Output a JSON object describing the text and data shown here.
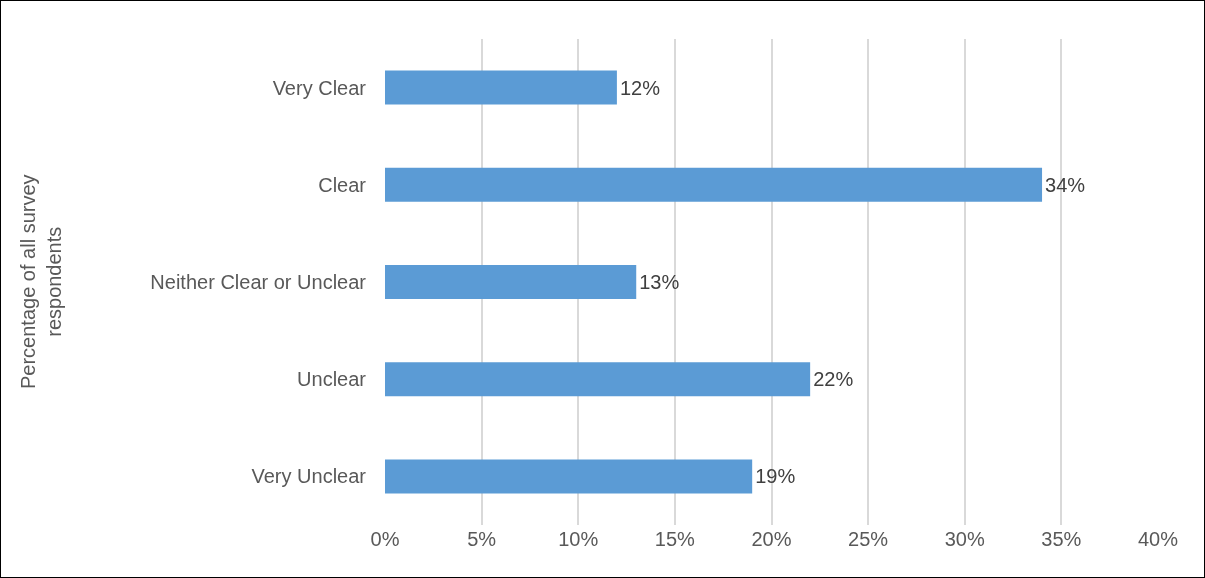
{
  "chart_data": {
    "type": "bar",
    "orientation": "horizontal",
    "ylabel": "Percentage of all survey respondents",
    "categories": [
      "Very Clear",
      "Clear",
      "Neither Clear or Unclear",
      "Unclear",
      "Very Unclear"
    ],
    "values": [
      12,
      34,
      13,
      22,
      19
    ],
    "color": "#5b9bd5",
    "value_labels": [
      "12%",
      "34%",
      "13%",
      "22%",
      "19%"
    ],
    "xlim": [
      0,
      40
    ],
    "xticks": [
      {
        "value": 0,
        "label": "0%"
      },
      {
        "value": 5,
        "label": "5%"
      },
      {
        "value": 10,
        "label": "10%"
      },
      {
        "value": 15,
        "label": "15%"
      },
      {
        "value": 20,
        "label": "20%"
      },
      {
        "value": 25,
        "label": "25%"
      },
      {
        "value": 30,
        "label": "30%"
      },
      {
        "value": 35,
        "label": "35%"
      },
      {
        "value": 40,
        "label": "40%"
      }
    ],
    "grid": "x"
  }
}
